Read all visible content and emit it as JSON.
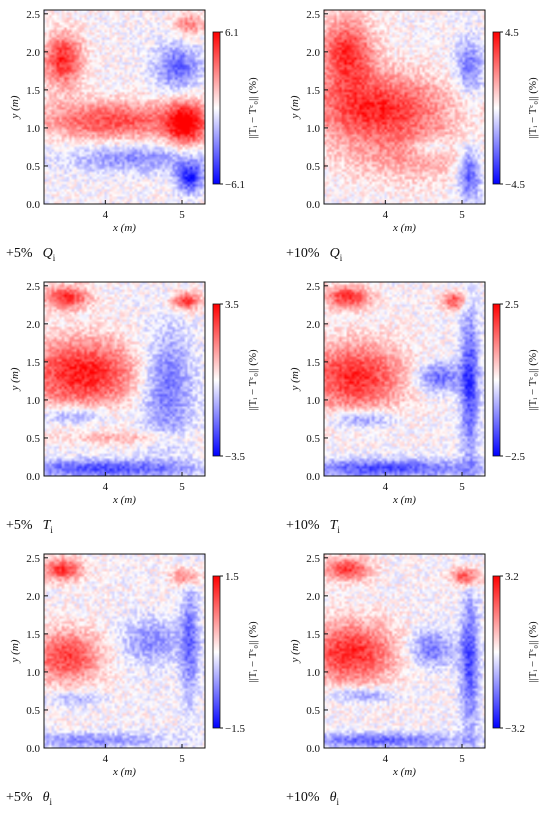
{
  "chart_data": [
    {
      "type": "heatmap",
      "panel_id": "p1",
      "caption": {
        "percent": "+5%",
        "symbol": "Q",
        "subscript": "i"
      },
      "xlabel": "x (m)",
      "ylabel": "y (m)",
      "xlim": [
        3.2,
        5.3
      ],
      "ylim": [
        0.0,
        2.55
      ],
      "xticks": [
        "4",
        "5"
      ],
      "yticks": [
        "0.0",
        "0.5",
        "1.0",
        "1.5",
        "2.0",
        "2.5"
      ],
      "colorbar": {
        "max_label": "6.1",
        "min_label": "−6.1",
        "label": "||Tᵢ − Tᶜ₀|| (%)"
      },
      "features": [
        {
          "kind": "warm",
          "x": 3.45,
          "y": 1.9,
          "rx": 0.25,
          "ry": 0.35,
          "intensity": 0.85
        },
        {
          "kind": "warm",
          "x": 4.1,
          "y": 1.1,
          "rx": 1.0,
          "ry": 0.25,
          "intensity": 0.7
        },
        {
          "kind": "warm",
          "x": 5.05,
          "y": 1.05,
          "rx": 0.25,
          "ry": 0.3,
          "intensity": 0.95
        },
        {
          "kind": "cool",
          "x": 4.95,
          "y": 1.8,
          "rx": 0.3,
          "ry": 0.3,
          "intensity": 0.6
        },
        {
          "kind": "cool",
          "x": 4.4,
          "y": 0.6,
          "rx": 0.9,
          "ry": 0.18,
          "intensity": 0.45
        },
        {
          "kind": "cool",
          "x": 5.1,
          "y": 0.35,
          "rx": 0.18,
          "ry": 0.2,
          "intensity": 0.85
        },
        {
          "kind": "warm",
          "x": 5.1,
          "y": 2.35,
          "rx": 0.2,
          "ry": 0.15,
          "intensity": 0.5
        }
      ]
    },
    {
      "type": "heatmap",
      "panel_id": "p2",
      "caption": {
        "percent": "+10%",
        "symbol": "Q",
        "subscript": "i"
      },
      "xlabel": "x (m)",
      "ylabel": "y (m)",
      "xlim": [
        3.2,
        5.3
      ],
      "ylim": [
        0.0,
        2.55
      ],
      "xticks": [
        "4",
        "5"
      ],
      "yticks": [
        "0.0",
        "0.5",
        "1.0",
        "1.5",
        "2.0",
        "2.5"
      ],
      "colorbar": {
        "max_label": "4.5",
        "min_label": "−4.5",
        "label": "||Tᵢ − Tᶜ₀|| (%)"
      },
      "features": [
        {
          "kind": "warm",
          "x": 3.5,
          "y": 2.0,
          "rx": 0.35,
          "ry": 0.45,
          "intensity": 0.8
        },
        {
          "kind": "warm",
          "x": 3.9,
          "y": 1.25,
          "rx": 0.9,
          "ry": 0.45,
          "intensity": 0.85
        },
        {
          "kind": "warm",
          "x": 4.3,
          "y": 0.6,
          "rx": 0.9,
          "ry": 0.35,
          "intensity": 0.3
        },
        {
          "kind": "cool",
          "x": 5.1,
          "y": 1.8,
          "rx": 0.18,
          "ry": 0.35,
          "intensity": 0.55
        },
        {
          "kind": "cool",
          "x": 5.1,
          "y": 0.4,
          "rx": 0.15,
          "ry": 0.35,
          "intensity": 0.7
        },
        {
          "kind": "cool",
          "x": 4.6,
          "y": 0.75,
          "rx": 0.25,
          "ry": 0.1,
          "intensity": 0.35
        }
      ]
    },
    {
      "type": "heatmap",
      "panel_id": "p3",
      "caption": {
        "percent": "+5%",
        "symbol": "T",
        "subscript": "i"
      },
      "xlabel": "x (m)",
      "ylabel": "y (m)",
      "xlim": [
        3.2,
        5.3
      ],
      "ylim": [
        0.0,
        2.55
      ],
      "xticks": [
        "4",
        "5"
      ],
      "yticks": [
        "0.0",
        "0.5",
        "1.0",
        "1.5",
        "2.0",
        "2.5"
      ],
      "colorbar": {
        "max_label": "3.5",
        "min_label": "−3.5",
        "label": "||Tᵢ − Tᶜ₀|| (%)"
      },
      "features": [
        {
          "kind": "warm",
          "x": 3.7,
          "y": 1.35,
          "rx": 0.75,
          "ry": 0.45,
          "intensity": 0.9
        },
        {
          "kind": "warm",
          "x": 3.5,
          "y": 2.35,
          "rx": 0.3,
          "ry": 0.15,
          "intensity": 0.8
        },
        {
          "kind": "warm",
          "x": 5.05,
          "y": 2.3,
          "rx": 0.18,
          "ry": 0.12,
          "intensity": 0.8
        },
        {
          "kind": "cool",
          "x": 4.8,
          "y": 1.2,
          "rx": 0.35,
          "ry": 0.7,
          "intensity": 0.6
        },
        {
          "kind": "cool",
          "x": 3.6,
          "y": 0.8,
          "rx": 0.45,
          "ry": 0.12,
          "intensity": 0.45
        },
        {
          "kind": "cool",
          "x": 4.0,
          "y": 0.1,
          "rx": 1.2,
          "ry": 0.12,
          "intensity": 0.7
        },
        {
          "kind": "warm",
          "x": 4.3,
          "y": 0.5,
          "rx": 0.8,
          "ry": 0.08,
          "intensity": 0.3
        }
      ]
    },
    {
      "type": "heatmap",
      "panel_id": "p4",
      "caption": {
        "percent": "+10%",
        "symbol": "T",
        "subscript": "i"
      },
      "xlabel": "x (m)",
      "ylabel": "y (m)",
      "xlim": [
        3.2,
        5.3
      ],
      "ylim": [
        0.0,
        2.55
      ],
      "xticks": [
        "4",
        "5"
      ],
      "yticks": [
        "0.0",
        "0.5",
        "1.0",
        "1.5",
        "2.0",
        "2.5"
      ],
      "colorbar": {
        "max_label": "2.5",
        "min_label": "−2.5",
        "label": "||Tᵢ − Tᶜ₀|| (%)"
      },
      "features": [
        {
          "kind": "warm",
          "x": 3.6,
          "y": 1.3,
          "rx": 0.65,
          "ry": 0.45,
          "intensity": 0.85
        },
        {
          "kind": "warm",
          "x": 3.5,
          "y": 2.35,
          "rx": 0.3,
          "ry": 0.15,
          "intensity": 0.8
        },
        {
          "kind": "warm",
          "x": 4.9,
          "y": 2.3,
          "rx": 0.15,
          "ry": 0.12,
          "intensity": 0.7
        },
        {
          "kind": "cool",
          "x": 4.7,
          "y": 1.3,
          "rx": 0.3,
          "ry": 0.2,
          "intensity": 0.6
        },
        {
          "kind": "cool",
          "x": 5.1,
          "y": 1.2,
          "rx": 0.12,
          "ry": 1.0,
          "intensity": 0.75
        },
        {
          "kind": "cool",
          "x": 3.7,
          "y": 0.75,
          "rx": 0.4,
          "ry": 0.12,
          "intensity": 0.5
        },
        {
          "kind": "cool",
          "x": 4.0,
          "y": 0.1,
          "rx": 1.2,
          "ry": 0.12,
          "intensity": 0.7
        }
      ]
    },
    {
      "type": "heatmap",
      "panel_id": "p5",
      "caption": {
        "percent": "+5%",
        "symbol": "θ",
        "subscript": "i"
      },
      "xlabel": "x (m)",
      "ylabel": "y (m)",
      "xlim": [
        3.2,
        5.3
      ],
      "ylim": [
        0.0,
        2.55
      ],
      "xticks": [
        "4",
        "5"
      ],
      "yticks": [
        "0.0",
        "0.5",
        "1.0",
        "1.5",
        "2.0",
        "2.5"
      ],
      "colorbar": {
        "max_label": "1.5",
        "min_label": "−1.5",
        "label": "||Tᵢ − Tᶜ₀|| (%)"
      },
      "features": [
        {
          "kind": "warm",
          "x": 3.5,
          "y": 1.2,
          "rx": 0.45,
          "ry": 0.35,
          "intensity": 0.75
        },
        {
          "kind": "warm",
          "x": 3.45,
          "y": 2.35,
          "rx": 0.25,
          "ry": 0.15,
          "intensity": 0.8
        },
        {
          "kind": "warm",
          "x": 5.05,
          "y": 2.25,
          "rx": 0.18,
          "ry": 0.12,
          "intensity": 0.6
        },
        {
          "kind": "cool",
          "x": 4.6,
          "y": 1.4,
          "rx": 0.4,
          "ry": 0.3,
          "intensity": 0.45
        },
        {
          "kind": "cool",
          "x": 5.1,
          "y": 1.4,
          "rx": 0.12,
          "ry": 0.8,
          "intensity": 0.55
        },
        {
          "kind": "cool",
          "x": 3.8,
          "y": 0.1,
          "rx": 1.0,
          "ry": 0.1,
          "intensity": 0.45
        },
        {
          "kind": "cool",
          "x": 3.6,
          "y": 0.65,
          "rx": 0.35,
          "ry": 0.1,
          "intensity": 0.35
        }
      ]
    },
    {
      "type": "heatmap",
      "panel_id": "p6",
      "caption": {
        "percent": "+10%",
        "symbol": "θ",
        "subscript": "i"
      },
      "xlabel": "x (m)",
      "ylabel": "y (m)",
      "xlim": [
        3.2,
        5.3
      ],
      "ylim": [
        0.0,
        2.55
      ],
      "xticks": [
        "4",
        "5"
      ],
      "yticks": [
        "0.0",
        "0.5",
        "1.0",
        "1.5",
        "2.0",
        "2.5"
      ],
      "colorbar": {
        "max_label": "3.2",
        "min_label": "−3.2",
        "label": "||Tᵢ − Tᶜ₀|| (%)"
      },
      "features": [
        {
          "kind": "warm",
          "x": 3.55,
          "y": 1.25,
          "rx": 0.6,
          "ry": 0.4,
          "intensity": 0.85
        },
        {
          "kind": "warm",
          "x": 3.5,
          "y": 2.35,
          "rx": 0.3,
          "ry": 0.15,
          "intensity": 0.8
        },
        {
          "kind": "warm",
          "x": 5.05,
          "y": 2.25,
          "rx": 0.18,
          "ry": 0.12,
          "intensity": 0.75
        },
        {
          "kind": "cool",
          "x": 4.6,
          "y": 1.3,
          "rx": 0.3,
          "ry": 0.25,
          "intensity": 0.55
        },
        {
          "kind": "cool",
          "x": 5.1,
          "y": 1.1,
          "rx": 0.12,
          "ry": 0.9,
          "intensity": 0.7
        },
        {
          "kind": "cool",
          "x": 3.7,
          "y": 0.7,
          "rx": 0.4,
          "ry": 0.1,
          "intensity": 0.45
        },
        {
          "kind": "cool",
          "x": 3.9,
          "y": 0.1,
          "rx": 1.1,
          "ry": 0.1,
          "intensity": 0.6
        }
      ]
    }
  ],
  "colors": {
    "warm": "#ff0000",
    "cool": "#0000ff",
    "neutral": "#ffffff"
  }
}
